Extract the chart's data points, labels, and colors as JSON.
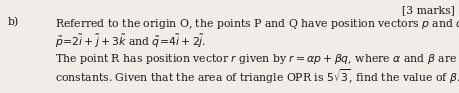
{
  "bg_color": "#f0ede8",
  "font_color": "#1a1a1a",
  "fig_width": 4.59,
  "fig_height": 0.93,
  "dpi": 100,
  "fs": 7.8,
  "marks_text": "[3 marks]",
  "part_label": "b)",
  "line1": "Referred to the origin O, the points P and Q have position vectors $\\mathit{p}$ and $\\mathit{q}$ such that",
  "line2": "$\\mathit{\\tilde{p}}\\!=\\!2\\mathit{\\tilde{i}}+\\mathit{\\tilde{j}}+3\\mathit{\\tilde{k}}$ and $\\mathit{\\tilde{q}}\\!=\\!4\\mathit{\\tilde{i}}+2\\mathit{\\tilde{j}}$.",
  "line3": "The point R has position vector $\\mathit{r}$ given by $\\mathit{r}=\\alpha \\mathit{p}+\\beta \\mathit{q}$, where $\\mathit{\\alpha}$ and $\\mathit{\\beta}$ are positive",
  "line4": "constants. Given that the area of triangle OPR is $5\\sqrt{3}$, find the value of $\\mathit{\\beta}$."
}
